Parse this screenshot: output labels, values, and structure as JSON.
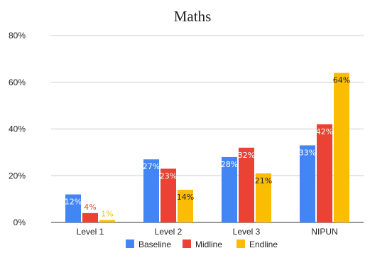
{
  "chart_data": {
    "type": "bar",
    "title": "Maths",
    "categories": [
      "Level 1",
      "Level 2",
      "Level 3",
      "NIPUN"
    ],
    "series": [
      {
        "name": "Baseline",
        "color": "#4285f4",
        "values": [
          12,
          27,
          28,
          33
        ],
        "labels": [
          "12%",
          "27%",
          "28%",
          "33%"
        ]
      },
      {
        "name": "Midline",
        "color": "#ea4335",
        "values": [
          4,
          23,
          32,
          42
        ],
        "labels": [
          "4%",
          "23%",
          "32%",
          "42%"
        ]
      },
      {
        "name": "Endline",
        "color": "#fbbc04",
        "values": [
          1,
          14,
          21,
          64
        ],
        "labels": [
          "1%",
          "14%",
          "21%",
          "64%"
        ]
      }
    ],
    "y_ticks": [
      "0%",
      "20%",
      "40%",
      "60%",
      "80%"
    ],
    "y_tick_values": [
      0,
      20,
      40,
      60,
      80
    ],
    "ylim": [
      0,
      80
    ],
    "grid": true,
    "legend_position": "bottom"
  }
}
